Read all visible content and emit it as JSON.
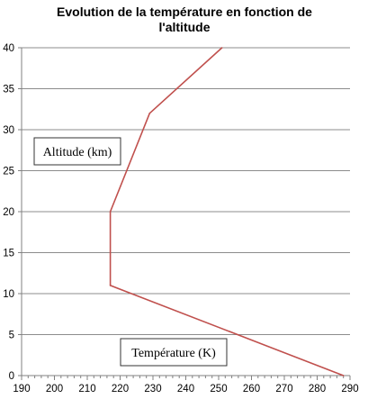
{
  "chart_data": {
    "type": "line",
    "title_lines": [
      "Evolution de la température en fonction de",
      "l'altitude"
    ],
    "xlim": [
      190,
      290
    ],
    "ylim": [
      0,
      40
    ],
    "x_ticks": [
      190,
      200,
      210,
      220,
      230,
      240,
      250,
      260,
      270,
      280,
      290
    ],
    "y_ticks": [
      0,
      5,
      10,
      15,
      20,
      25,
      30,
      35,
      40
    ],
    "grid": "horizontal",
    "annotations": {
      "altitude_label": "Altitude (km)",
      "temperature_label": "Température (K)"
    },
    "series": [
      {
        "color": "#c0504d",
        "x": [
          288,
          217,
          217,
          229,
          251
        ],
        "y": [
          0,
          11,
          20,
          32,
          40
        ]
      }
    ]
  }
}
